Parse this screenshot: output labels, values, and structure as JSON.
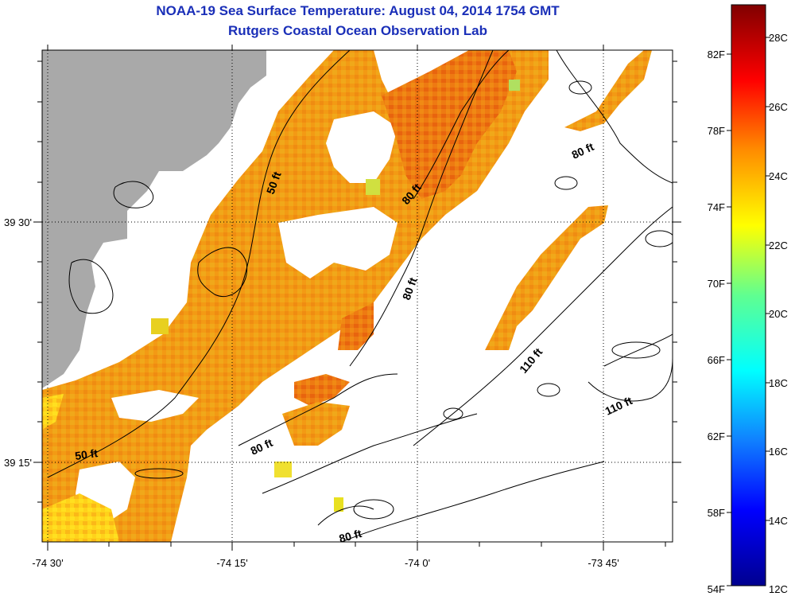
{
  "header": {
    "title": "NOAA-19 Sea Surface Temperature:  August 04, 2014 1754 GMT",
    "subtitle": "Rutgers Coastal Ocean Observation Lab"
  },
  "axes": {
    "x_labels": [
      "-74 30'",
      "-74 15'",
      "-74 0'",
      "-73 45'"
    ],
    "y_labels": [
      "39 30'",
      "39 15'"
    ]
  },
  "contours": {
    "labels": [
      "50 ft",
      "50 ft",
      "80 ft",
      "80 ft",
      "80 ft",
      "80 ft",
      "80 ft",
      "110 ft",
      "110 ft"
    ]
  },
  "colorbar": {
    "fahrenheit": [
      "82F",
      "78F",
      "74F",
      "70F",
      "66F",
      "62F",
      "58F",
      "54F"
    ],
    "celsius": [
      "28C",
      "26C",
      "24C",
      "22C",
      "20C",
      "18C",
      "16C",
      "14C",
      "12C"
    ]
  },
  "colors": {
    "land": "#a9a9a9",
    "title": "#1a2fb8",
    "sst_warm": "#f39a14",
    "sst_hot": "#ee6a10"
  }
}
